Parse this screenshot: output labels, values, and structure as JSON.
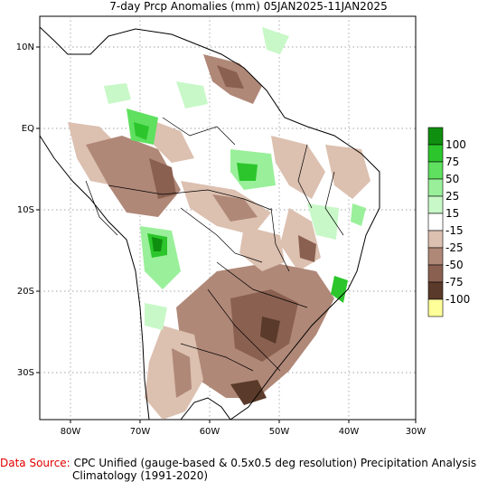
{
  "title": "7-day Prcp Anomalies (mm) 05JAN2025-11JAN2025",
  "map": {
    "lon_ticks": [
      "80W",
      "70W",
      "60W",
      "50W",
      "40W",
      "30W"
    ],
    "lat_ticks": [
      "10N",
      "EQ",
      "10S",
      "20S",
      "30S"
    ]
  },
  "legend": {
    "labels": [
      "100",
      "75",
      "50",
      "25",
      "15",
      "-15",
      "-25",
      "-50",
      "-75",
      "-100"
    ],
    "colors": [
      "#0f8f0f",
      "#2cc62c",
      "#5fe05f",
      "#9af09a",
      "#c8f8c8",
      "#ffffff",
      "#dcc0b0",
      "#b08878",
      "#8a6050",
      "#5a3a2a",
      "#ffff99"
    ]
  },
  "footer": {
    "source_label": "Data Source:",
    "source_text": "CPC Unified (gauge-based & 0.5x0.5 deg resolution) Precipitation Analysis",
    "climatology": "Climatology (1991-2020)"
  }
}
